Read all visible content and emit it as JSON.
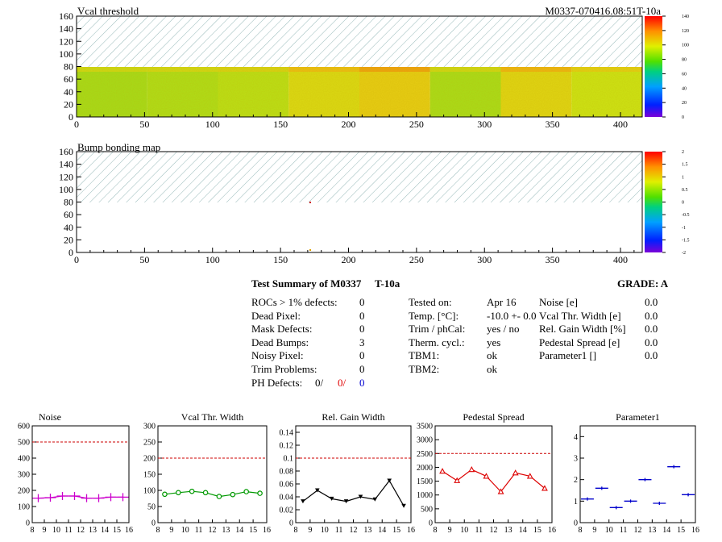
{
  "top_right_label": "M0337-070416.08:51T-10a",
  "maps": [
    {
      "title": "Vcal threshold",
      "yticks": [
        "160",
        "140",
        "120",
        "100",
        "80",
        "60",
        "40",
        "20",
        "0"
      ],
      "xticks": [
        "0",
        "50",
        "100",
        "150",
        "200",
        "250",
        "300",
        "350",
        "400"
      ],
      "palette_ticks": [
        "140",
        "120",
        "100",
        "80",
        "60",
        "40",
        "20",
        "0"
      ],
      "segments": [
        {
          "x0": 0,
          "x1": 52,
          "level": 0.35
        },
        {
          "x0": 52,
          "x1": 104,
          "level": 0.38
        },
        {
          "x0": 104,
          "x1": 156,
          "level": 0.42
        },
        {
          "x0": 156,
          "x1": 208,
          "level": 0.58
        },
        {
          "x0": 208,
          "x1": 260,
          "level": 0.68
        },
        {
          "x0": 260,
          "x1": 312,
          "level": 0.36
        },
        {
          "x0": 312,
          "x1": 364,
          "level": 0.62
        },
        {
          "x0": 364,
          "x1": 416,
          "level": 0.48
        }
      ]
    },
    {
      "title": "Bump bonding map",
      "yticks": [
        "160",
        "140",
        "120",
        "100",
        "80",
        "60",
        "40",
        "20",
        "0"
      ],
      "xticks": [
        "0",
        "50",
        "100",
        "150",
        "200",
        "250",
        "300",
        "350",
        "400"
      ],
      "palette_ticks": [
        "2",
        "1.5",
        "1",
        "0.5",
        "0",
        "-0.5",
        "-1",
        "-1.5",
        "-2"
      ]
    }
  ],
  "summary": {
    "title": "Test Summary of M0337",
    "temp_label": "T-10a",
    "grade": "GRADE:  A",
    "col1": {
      "labels": [
        "ROCs > 1% defects:",
        "Dead Pixel:",
        "Mask Defects:",
        "Dead Bumps:",
        "Noisy Pixel:",
        "Trim Problems:"
      ],
      "values": [
        "0",
        "0",
        "0",
        "3",
        "0",
        "0"
      ],
      "ph_label": "PH Defects:",
      "ph_a": "0/",
      "ph_b": "0/",
      "ph_c": "0"
    },
    "col2": {
      "labels": [
        "Tested on:",
        "Temp. [°C]:",
        "Trim / phCal:",
        "Therm. cycl.:",
        "TBM1:",
        "TBM2:"
      ],
      "values": [
        "Apr 16",
        "-10.0 +- 0.0",
        "yes / no",
        "yes",
        "ok",
        "ok"
      ]
    },
    "col3": {
      "labels": [
        "Noise [e]",
        "Vcal Thr. Width [e]",
        "Rel. Gain Width [%]",
        "Pedestal Spread [e]",
        "Parameter1 []"
      ],
      "values": [
        "0.0",
        "0.0",
        "0.0",
        "0.0",
        "0.0"
      ]
    }
  },
  "chart_data": [
    {
      "type": "line",
      "title": "Noise",
      "color": "#cc00cc",
      "marker": "plus",
      "connected": true,
      "x": [
        8.5,
        9.5,
        10.5,
        11.5,
        12.5,
        13.5,
        14.5,
        15.5
      ],
      "values": [
        152,
        155,
        165,
        165,
        152,
        152,
        158,
        158
      ],
      "xlim": [
        8,
        16
      ],
      "ylim": [
        0,
        600
      ],
      "yticks": [
        0,
        100,
        200,
        300,
        400,
        500,
        600
      ],
      "reference_line": 500
    },
    {
      "type": "line",
      "title": "Vcal Thr. Width",
      "color": "#009900",
      "marker": "circle",
      "connected": true,
      "x": [
        8.5,
        9.5,
        10.5,
        11.5,
        12.5,
        13.5,
        14.5,
        15.5
      ],
      "values": [
        88,
        93,
        97,
        93,
        81,
        87,
        96,
        91
      ],
      "xlim": [
        8,
        16
      ],
      "ylim": [
        0,
        300
      ],
      "yticks": [
        0,
        50,
        100,
        150,
        200,
        250,
        300
      ],
      "reference_line": 200
    },
    {
      "type": "line",
      "title": "Rel. Gain Width",
      "color": "#000000",
      "marker": "triangle",
      "connected": true,
      "x": [
        8.5,
        9.5,
        10.5,
        11.5,
        12.5,
        13.5,
        14.5,
        15.5
      ],
      "values": [
        0.033,
        0.05,
        0.037,
        0.033,
        0.04,
        0.036,
        0.065,
        0.026
      ],
      "xlim": [
        8,
        16
      ],
      "ylim": [
        0,
        0.15
      ],
      "yticks": [
        0,
        0.02,
        0.04,
        0.06,
        0.08,
        0.1,
        0.12,
        0.14
      ],
      "reference_line": 0.1
    },
    {
      "type": "line",
      "title": "Pedestal Spread",
      "color": "#dd0000",
      "marker": "triangle-open",
      "connected": true,
      "x": [
        8.5,
        9.5,
        10.5,
        11.5,
        12.5,
        13.5,
        14.5,
        15.5
      ],
      "values": [
        1860,
        1520,
        1920,
        1680,
        1120,
        1800,
        1680,
        1240
      ],
      "xlim": [
        8,
        16
      ],
      "ylim": [
        0,
        3500
      ],
      "yticks": [
        0,
        500,
        1000,
        1500,
        2000,
        2500,
        3000,
        3500
      ],
      "reference_line": 2500
    },
    {
      "type": "scatter",
      "title": "Parameter1",
      "color": "#0000cc",
      "marker": "hbar",
      "connected": false,
      "x": [
        8.5,
        9.5,
        10.5,
        11.5,
        12.5,
        13.5,
        14.5,
        15.5
      ],
      "values": [
        1.1,
        1.6,
        0.7,
        1.0,
        2.0,
        0.9,
        2.6,
        1.3
      ],
      "xlim": [
        8,
        16
      ],
      "ylim": [
        0,
        4.5
      ],
      "yticks": [
        0,
        1,
        2,
        3,
        4
      ]
    }
  ]
}
